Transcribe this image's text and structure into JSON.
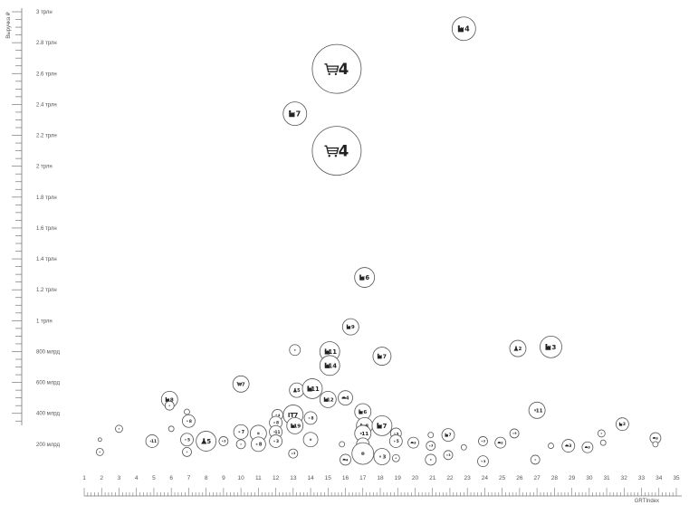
{
  "chart_data": {
    "type": "scatter",
    "title": "",
    "xlabel": "GRTIndex",
    "ylabel": "Выручка ₽",
    "xlim": [
      1,
      35
    ],
    "ylim": [
      0,
      3000
    ],
    "x_ticks": [
      1,
      2,
      3,
      4,
      5,
      6,
      7,
      8,
      9,
      10,
      11,
      12,
      13,
      14,
      15,
      16,
      17,
      18,
      19,
      20,
      21,
      22,
      23,
      24,
      25,
      26,
      27,
      28,
      29,
      30,
      31,
      32,
      33,
      34,
      35
    ],
    "y_ticks": [
      {
        "value": 200,
        "label": "200 млрд"
      },
      {
        "value": 400,
        "label": "400 млрд"
      },
      {
        "value": 600,
        "label": "600 млрд"
      },
      {
        "value": 800,
        "label": "800 млрд"
      },
      {
        "value": 1000,
        "label": "1 трлн"
      },
      {
        "value": 1200,
        "label": "1.2 трлн"
      },
      {
        "value": 1400,
        "label": "1.4 трлн"
      },
      {
        "value": 1600,
        "label": "1.6 трлн"
      },
      {
        "value": 1800,
        "label": "1.8 трлн"
      },
      {
        "value": 2000,
        "label": "2 трлн"
      },
      {
        "value": 2200,
        "label": "2.2 трлн"
      },
      {
        "value": 2400,
        "label": "2.4 трлн"
      },
      {
        "value": 2600,
        "label": "2.6 трлн"
      },
      {
        "value": 2800,
        "label": "2.8 трлн"
      },
      {
        "value": 3000,
        "label": "3 трлн"
      }
    ],
    "grid": false,
    "legend": "none",
    "colors": {
      "stroke": "#555555",
      "text": "#555555"
    },
    "points": [
      {
        "x": 22.8,
        "y": 2890,
        "size": 13,
        "icon": "industry-icon",
        "label": "4"
      },
      {
        "x": 15.5,
        "y": 2630,
        "size": 27,
        "icon": "cart-icon",
        "label": "4"
      },
      {
        "x": 13.1,
        "y": 2340,
        "size": 13,
        "icon": "industry-icon",
        "label": "7"
      },
      {
        "x": 15.5,
        "y": 2100,
        "size": 27,
        "icon": "cart-icon",
        "label": "4"
      },
      {
        "x": 17.1,
        "y": 1280,
        "size": 11,
        "icon": "industry-icon",
        "label": "6"
      },
      {
        "x": 16.3,
        "y": 960,
        "size": 9,
        "icon": "industry-icon",
        "label": "9"
      },
      {
        "x": 27.8,
        "y": 830,
        "size": 12,
        "icon": "industry-icon",
        "label": "3"
      },
      {
        "x": 25.9,
        "y": 820,
        "size": 9,
        "icon": "flask-icon",
        "label": "2"
      },
      {
        "x": 13.1,
        "y": 810,
        "size": 6,
        "icon": "dot-icon",
        "label": ""
      },
      {
        "x": 15.1,
        "y": 800,
        "size": 11,
        "icon": "industry-icon",
        "label": "11"
      },
      {
        "x": 18.1,
        "y": 770,
        "size": 10,
        "icon": "industry-icon",
        "label": "7"
      },
      {
        "x": 15.1,
        "y": 710,
        "size": 11,
        "icon": "industry-icon",
        "label": "14"
      },
      {
        "x": 10.0,
        "y": 590,
        "size": 9,
        "icon": "cart-icon",
        "label": "7"
      },
      {
        "x": 13.2,
        "y": 550,
        "size": 8,
        "icon": "flask-icon",
        "label": "5"
      },
      {
        "x": 14.1,
        "y": 560,
        "size": 11,
        "icon": "industry-icon",
        "label": "11"
      },
      {
        "x": 5.9,
        "y": 490,
        "size": 9,
        "icon": "industry-icon",
        "label": "8"
      },
      {
        "x": 15.0,
        "y": 490,
        "size": 9,
        "icon": "industry-icon",
        "label": "12"
      },
      {
        "x": 16.0,
        "y": 500,
        "size": 8,
        "icon": "car-icon",
        "label": "4"
      },
      {
        "x": 5.9,
        "y": 450,
        "size": 5,
        "icon": "dot-icon",
        "label": ""
      },
      {
        "x": 6.9,
        "y": 410,
        "size": 3,
        "icon": "dot-icon",
        "label": ""
      },
      {
        "x": 12.1,
        "y": 390,
        "size": 6,
        "icon": "dot-icon",
        "label": "4"
      },
      {
        "x": 13.0,
        "y": 390,
        "size": 11,
        "icon": "it-icon",
        "label": "7"
      },
      {
        "x": 14.0,
        "y": 370,
        "size": 7,
        "icon": "dot-icon",
        "label": "8"
      },
      {
        "x": 17.0,
        "y": 410,
        "size": 9,
        "icon": "industry-icon",
        "label": "6"
      },
      {
        "x": 27.0,
        "y": 420,
        "size": 9,
        "icon": "dot-icon",
        "label": "11"
      },
      {
        "x": 7.0,
        "y": 350,
        "size": 7,
        "icon": "dot-icon",
        "label": "8"
      },
      {
        "x": 12.0,
        "y": 340,
        "size": 7,
        "icon": "dot-icon",
        "label": "8"
      },
      {
        "x": 13.1,
        "y": 320,
        "size": 9,
        "icon": "industry-icon",
        "label": "19"
      },
      {
        "x": 17.1,
        "y": 320,
        "size": 9,
        "icon": "industry-icon",
        "label": "8"
      },
      {
        "x": 18.1,
        "y": 320,
        "size": 11,
        "icon": "industry-icon",
        "label": "7"
      },
      {
        "x": 31.9,
        "y": 330,
        "size": 7,
        "icon": "industry-icon",
        "label": "3"
      },
      {
        "x": 3.0,
        "y": 300,
        "size": 4,
        "icon": "dot-icon",
        "label": ""
      },
      {
        "x": 6.0,
        "y": 300,
        "size": 3,
        "icon": "dot-icon",
        "label": ""
      },
      {
        "x": 10.0,
        "y": 280,
        "size": 8,
        "icon": "dot-icon",
        "label": "7"
      },
      {
        "x": 11.0,
        "y": 270,
        "size": 9,
        "icon": "dot-icon",
        "label": ""
      },
      {
        "x": 12.0,
        "y": 280,
        "size": 7,
        "icon": "dot-icon",
        "label": "11"
      },
      {
        "x": 17.0,
        "y": 270,
        "size": 9,
        "icon": "dot-icon",
        "label": "11"
      },
      {
        "x": 18.9,
        "y": 270,
        "size": 6,
        "icon": "dot-icon",
        "label": "5"
      },
      {
        "x": 20.9,
        "y": 260,
        "size": 3,
        "icon": "dot-icon",
        "label": ""
      },
      {
        "x": 21.9,
        "y": 260,
        "size": 7,
        "icon": "industry-icon",
        "label": "7"
      },
      {
        "x": 25.7,
        "y": 270,
        "size": 5,
        "icon": "dot-icon",
        "label": "9"
      },
      {
        "x": 30.7,
        "y": 270,
        "size": 4,
        "icon": "dot-icon",
        "label": ""
      },
      {
        "x": 1.9,
        "y": 230,
        "size": 2,
        "icon": "dot-icon",
        "label": ""
      },
      {
        "x": 4.9,
        "y": 220,
        "size": 7,
        "icon": "dot-icon",
        "label": "11"
      },
      {
        "x": 6.9,
        "y": 230,
        "size": 7,
        "icon": "dot-icon",
        "label": "5"
      },
      {
        "x": 8.0,
        "y": 220,
        "size": 11,
        "icon": "flask-icon",
        "label": "5"
      },
      {
        "x": 9.0,
        "y": 220,
        "size": 5,
        "icon": "dot-icon",
        "label": "3"
      },
      {
        "x": 10.0,
        "y": 200,
        "size": 5,
        "icon": "dot-icon",
        "label": ""
      },
      {
        "x": 11.0,
        "y": 200,
        "size": 8,
        "icon": "dot-icon",
        "label": "8"
      },
      {
        "x": 12.0,
        "y": 220,
        "size": 7,
        "icon": "dot-icon",
        "label": "3"
      },
      {
        "x": 14.0,
        "y": 230,
        "size": 8,
        "icon": "dot-icon",
        "label": ""
      },
      {
        "x": 15.8,
        "y": 200,
        "size": 3,
        "icon": "dot-icon",
        "label": ""
      },
      {
        "x": 17.0,
        "y": 200,
        "size": 7,
        "icon": "dot-icon",
        "label": ""
      },
      {
        "x": 18.9,
        "y": 220,
        "size": 7,
        "icon": "dot-icon",
        "label": "5"
      },
      {
        "x": 19.9,
        "y": 210,
        "size": 6,
        "icon": "car-icon",
        "label": "3"
      },
      {
        "x": 20.9,
        "y": 190,
        "size": 5,
        "icon": "dot-icon",
        "label": "3"
      },
      {
        "x": 22.8,
        "y": 180,
        "size": 3,
        "icon": "dot-icon",
        "label": ""
      },
      {
        "x": 23.9,
        "y": 220,
        "size": 5,
        "icon": "dot-icon",
        "label": "3"
      },
      {
        "x": 24.9,
        "y": 210,
        "size": 6,
        "icon": "car-icon",
        "label": "2"
      },
      {
        "x": 27.8,
        "y": 190,
        "size": 3,
        "icon": "dot-icon",
        "label": ""
      },
      {
        "x": 28.8,
        "y": 190,
        "size": 7,
        "icon": "car-icon",
        "label": "3"
      },
      {
        "x": 29.9,
        "y": 180,
        "size": 6,
        "icon": "car-icon",
        "label": "3"
      },
      {
        "x": 30.8,
        "y": 210,
        "size": 3,
        "icon": "dot-icon",
        "label": ""
      },
      {
        "x": 33.8,
        "y": 240,
        "size": 6,
        "icon": "car-icon",
        "label": "3"
      },
      {
        "x": 33.8,
        "y": 200,
        "size": 3,
        "icon": "dot-icon",
        "label": ""
      },
      {
        "x": 1.9,
        "y": 150,
        "size": 4,
        "icon": "dot-icon",
        "label": ""
      },
      {
        "x": 6.9,
        "y": 150,
        "size": 5,
        "icon": "dot-icon",
        "label": ""
      },
      {
        "x": 13.0,
        "y": 140,
        "size": 5,
        "icon": "dot-icon",
        "label": "3"
      },
      {
        "x": 16.0,
        "y": 100,
        "size": 6,
        "icon": "car-icon",
        "label": "4"
      },
      {
        "x": 17.0,
        "y": 140,
        "size": 12,
        "icon": "dot-icon",
        "label": ""
      },
      {
        "x": 18.1,
        "y": 120,
        "size": 9,
        "icon": "dot-icon",
        "label": "3"
      },
      {
        "x": 18.9,
        "y": 110,
        "size": 4,
        "icon": "dot-icon",
        "label": ""
      },
      {
        "x": 20.9,
        "y": 100,
        "size": 6,
        "icon": "dot-icon",
        "label": ""
      },
      {
        "x": 21.9,
        "y": 130,
        "size": 5,
        "icon": "dot-icon",
        "label": "3"
      },
      {
        "x": 23.9,
        "y": 90,
        "size": 6,
        "icon": "dot-icon",
        "label": "3"
      },
      {
        "x": 26.9,
        "y": 100,
        "size": 5,
        "icon": "dot-icon",
        "label": ""
      }
    ]
  }
}
